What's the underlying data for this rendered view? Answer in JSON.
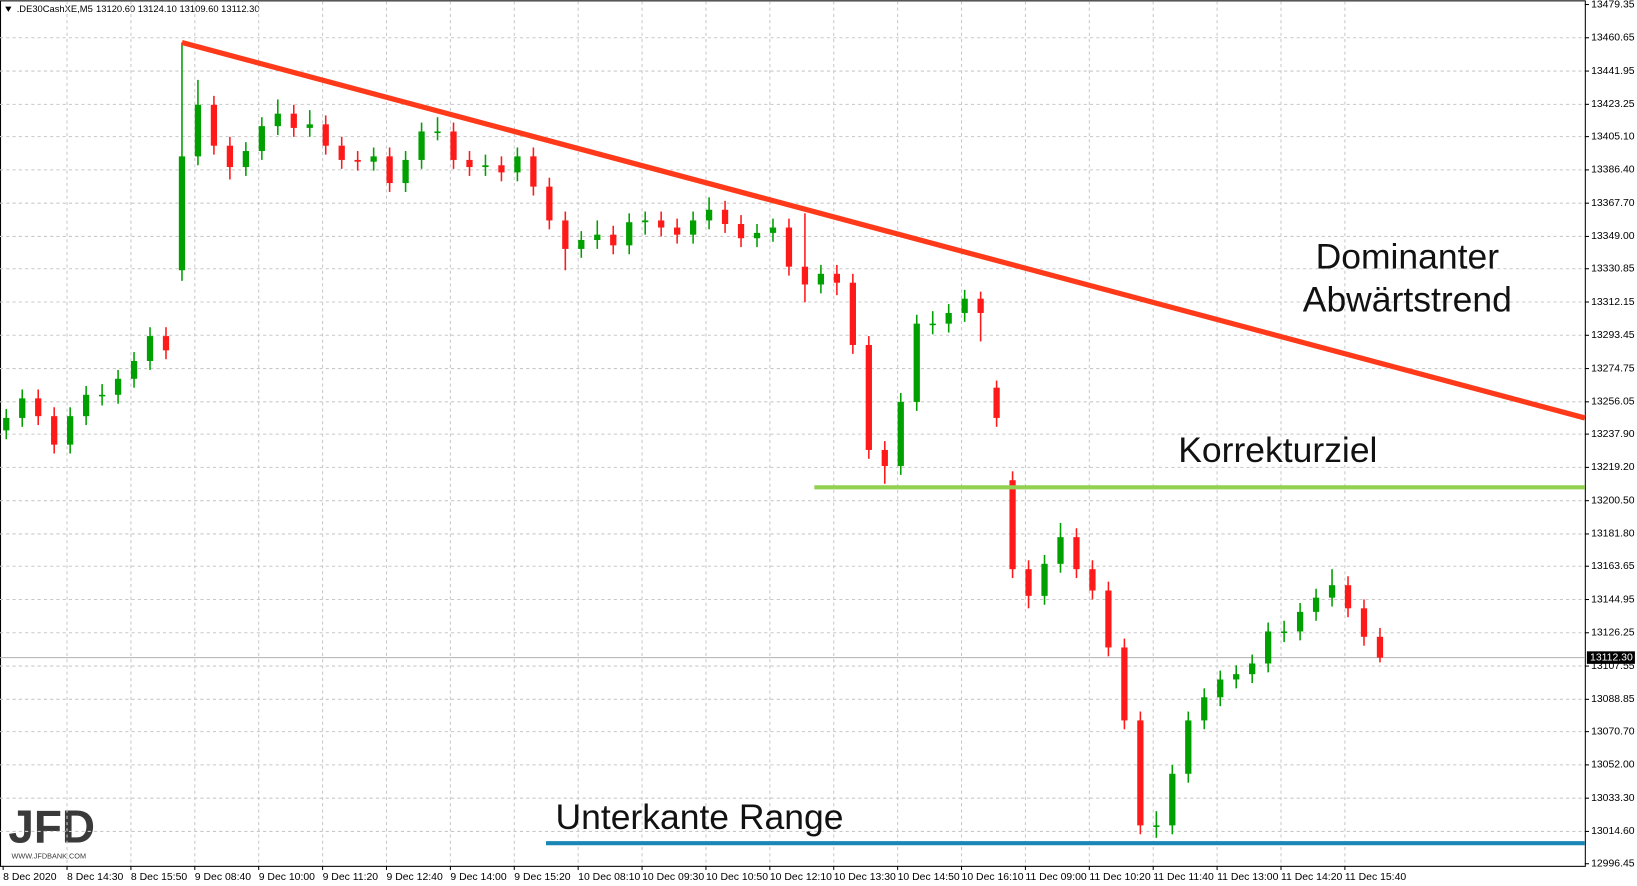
{
  "header": {
    "symbol": ".DE30CashXE,M5",
    "quote": "13120.60 13124.10 13109.60 13112.30"
  },
  "logo": {
    "brand": "JFD",
    "url": "WWW.JFDBANK.COM"
  },
  "chart_data": {
    "type": "candlestick",
    "categories": [
      "8 Dec 2020",
      "8 Dec 14:30",
      "8 Dec 15:50",
      "9 Dec 08:40",
      "9 Dec 10:00",
      "9 Dec 11:20",
      "9 Dec 12:40",
      "9 Dec 14:00",
      "9 Dec 15:20",
      "10 Dec 08:10",
      "10 Dec 09:30",
      "10 Dec 10:50",
      "10 Dec 12:10",
      "10 Dec 13:30",
      "10 Dec 14:50",
      "10 Dec 16:10",
      "11 Dec 09:00",
      "11 Dec 10:20",
      "11 Dec 11:40",
      "11 Dec 13:00",
      "11 Dec 14:20",
      "11 Dec 15:40"
    ],
    "open": [
      13240,
      13247,
      13258,
      13248,
      13232,
      13248,
      13260,
      13260,
      13269,
      13279,
      13293,
      13330,
      13394,
      13423,
      13400,
      13388,
      13397,
      13411,
      13418,
      13410,
      13412,
      13400,
      13392,
      13391,
      13394,
      13379,
      13392,
      13408,
      13408,
      13392,
      13388,
      13389,
      13385,
      13394,
      13377,
      13358,
      13342,
      13347,
      13350,
      13344,
      13357,
      13358,
      13354,
      13350,
      13358,
      13364,
      13356,
      13348,
      13351,
      13354,
      13332,
      13322,
      13328,
      13323,
      13288,
      13229,
      13220,
      13256,
      13300,
      13300,
      13306,
      13314,
      13264,
      13212,
      13162,
      13147,
      13165,
      13180,
      13162,
      13150,
      13118,
      13077,
      13018,
      13018,
      13047,
      13077,
      13090,
      13100,
      13103,
      13109,
      13127,
      13127,
      13138,
      13146,
      13153,
      13140,
      13124
    ],
    "high": [
      13252,
      13263,
      13263,
      13253,
      13253,
      13265,
      13266,
      13274,
      13284,
      13298,
      13298,
      13458,
      13437,
      13428,
      13405,
      13402,
      13416,
      13426,
      13423,
      13420,
      13417,
      13405,
      13397,
      13399,
      13399,
      13397,
      13413,
      13416,
      13413,
      13397,
      13395,
      13394,
      13399,
      13399,
      13382,
      13363,
      13352,
      13358,
      13355,
      13362,
      13363,
      13363,
      13359,
      13363,
      13371,
      13369,
      13361,
      13356,
      13359,
      13359,
      13362,
      13333,
      13333,
      13328,
      13293,
      13234,
      13261,
      13305,
      13307,
      13311,
      13319,
      13318,
      13268,
      13217,
      13167,
      13170,
      13188,
      13185,
      13167,
      13155,
      13123,
      13082,
      13026,
      13052,
      13082,
      13095,
      13105,
      13108,
      13114,
      13132,
      13133,
      13143,
      13151,
      13162,
      13158,
      13145,
      13129
    ],
    "low": [
      13235,
      13242,
      13243,
      13227,
      13227,
      13243,
      13254,
      13255,
      13264,
      13274,
      13280,
      13324,
      13389,
      13395,
      13381,
      13383,
      13392,
      13406,
      13405,
      13405,
      13395,
      13387,
      13386,
      13386,
      13374,
      13374,
      13387,
      13403,
      13387,
      13383,
      13383,
      13380,
      13380,
      13372,
      13353,
      13330,
      13337,
      13342,
      13339,
      13339,
      13350,
      13349,
      13345,
      13345,
      13353,
      13351,
      13343,
      13343,
      13346,
      13327,
      13312,
      13317,
      13316,
      13283,
      13224,
      13210,
      13215,
      13251,
      13294,
      13295,
      13301,
      13290,
      13242,
      13157,
      13140,
      13142,
      13160,
      13157,
      13145,
      13113,
      13072,
      13013,
      13011,
      13013,
      13042,
      13072,
      13085,
      13095,
      13098,
      13104,
      13121,
      13122,
      13133,
      13141,
      13135,
      13119,
      13109.6
    ],
    "close": [
      13247,
      13258,
      13248,
      13232,
      13248,
      13260,
      13260,
      13269,
      13279,
      13293,
      13285,
      13394,
      13423,
      13400,
      13388,
      13397,
      13411,
      13418,
      13410,
      13412,
      13400,
      13392,
      13391,
      13394,
      13379,
      13392,
      13408,
      13408,
      13392,
      13388,
      13389,
      13385,
      13394,
      13377,
      13358,
      13342,
      13347,
      13350,
      13344,
      13357,
      13358,
      13354,
      13350,
      13358,
      13364,
      13356,
      13348,
      13351,
      13354,
      13332,
      13322,
      13328,
      13323,
      13288,
      13229,
      13220,
      13256,
      13300,
      13300,
      13306,
      13314,
      13306,
      13247,
      13162,
      13147,
      13165,
      13180,
      13162,
      13150,
      13118,
      13077,
      13018,
      13018,
      13047,
      13077,
      13090,
      13100,
      13103,
      13109,
      13127,
      13127,
      13138,
      13146,
      13153,
      13140,
      13124,
      13112.3
    ],
    "up_color": "#00a000",
    "down_color": "#ff1a1a",
    "ylim": [
      12996.45,
      13479.35
    ],
    "yticks": [
      12996.45,
      {
        "value": 13014.6,
        "label": "13014.60"
      },
      {
        "value": 13033.3,
        "label": "13033.30"
      },
      {
        "value": 13052,
        "label": "13052.00"
      },
      {
        "value": 13070.7,
        "label": "13070.70"
      },
      13088.85,
      13107.55,
      13126.25,
      13144.95,
      13163.65,
      {
        "value": 13181.8,
        "label": "13181.80"
      },
      {
        "value": 13200.5,
        "label": "13200.50"
      },
      {
        "value": 13219.2,
        "label": "13219.20"
      },
      {
        "value": 13237.9,
        "label": "13237.90"
      },
      13256.05,
      13274.75,
      13293.45,
      13312.15,
      13330.85,
      {
        "value": 13349,
        "label": "13349.00"
      },
      {
        "value": 13367.7,
        "label": "13367.70"
      },
      {
        "value": 13386.4,
        "label": "13386.40"
      },
      {
        "value": 13405.1,
        "label": "13405.10"
      },
      13423.25,
      13441.95,
      13460.65,
      13479.35
    ],
    "grid": true,
    "last_price": {
      "value": 13112.3,
      "label": "13112.30"
    },
    "trendline": {
      "label": [
        "Dominanter",
        "Abwärtstrend"
      ],
      "values": [
        13458,
        13247
      ],
      "color": "#ff3a1a"
    },
    "levels": [
      {
        "label": "Korrekturziel",
        "value": 13208,
        "color": "#92d050"
      },
      {
        "label": "Unterkante Range",
        "value": 13008,
        "color": "#1a86b5"
      }
    ]
  }
}
